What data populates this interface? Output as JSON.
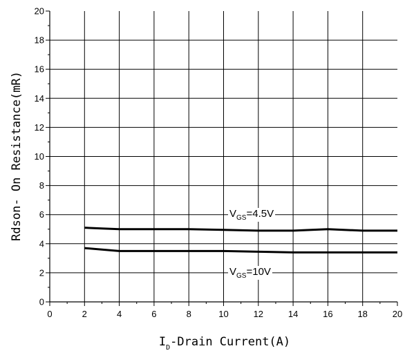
{
  "chart_data": {
    "type": "line",
    "xlabel": "I",
    "xlabel_sub": "D",
    "xlabel_rest": "-Drain Current(A)",
    "ylabel": "Rdson- On Resistance(mR)",
    "xlim": [
      0,
      20
    ],
    "ylim": [
      0,
      20
    ],
    "x_ticks": [
      "0",
      "2",
      "4",
      "6",
      "8",
      "10",
      "12",
      "14",
      "16",
      "18",
      "20"
    ],
    "y_ticks": [
      "0",
      "2",
      "4",
      "6",
      "8",
      "10",
      "12",
      "14",
      "16",
      "18",
      "20"
    ],
    "grid": true,
    "series": [
      {
        "name": "VGS=4.5V",
        "color": "#000000",
        "x": [
          2,
          3,
          4,
          6,
          8,
          10,
          12,
          14,
          16,
          18,
          20
        ],
        "y": [
          5.1,
          5.05,
          5.0,
          5.0,
          5.0,
          4.95,
          4.9,
          4.9,
          5.0,
          4.9,
          4.9
        ]
      },
      {
        "name": "VGS=10V",
        "color": "#000000",
        "x": [
          2,
          3,
          4,
          6,
          8,
          10,
          12,
          14,
          16,
          18,
          20
        ],
        "y": [
          3.7,
          3.6,
          3.5,
          3.5,
          3.5,
          3.5,
          3.45,
          3.4,
          3.4,
          3.4,
          3.4
        ]
      }
    ],
    "annotations": [
      {
        "main": "V",
        "sub": "GS",
        "rest": "=4.5V"
      },
      {
        "main": "V",
        "sub": "GS",
        "rest": "=10V"
      }
    ]
  }
}
